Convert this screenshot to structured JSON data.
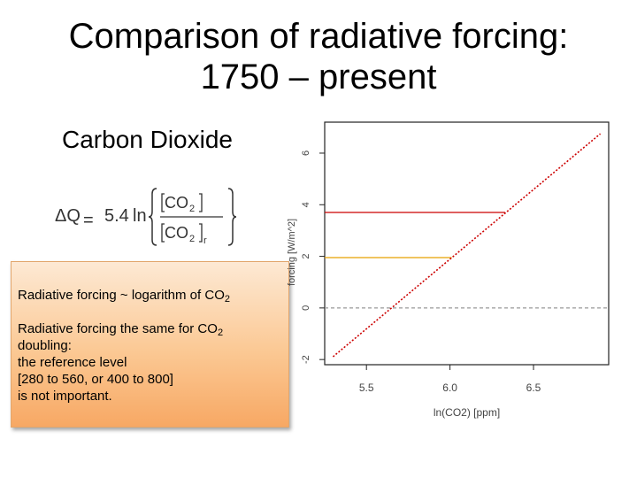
{
  "title": {
    "line1": "Comparison of radiative forcing:",
    "line2": "1750 – present"
  },
  "subtitle": "Carbon Dioxide",
  "formula": {
    "lhs": "ΔQ",
    "eq": "=",
    "coef": "5.4",
    "fn": "ln",
    "num": "CO",
    "num_sub": "2",
    "den": "CO",
    "den_sub": "2",
    "den_sub2": "r"
  },
  "callout": {
    "line1_text": "Radiative forcing ~ logarithm of CO",
    "line1_sub": "2",
    "line2_text": "Radiative forcing the same for CO",
    "line2_sub": "2",
    "line3": "doubling:",
    "line4": "the reference level",
    "line5": "[280 to 560, or 400 to 800]",
    "line6": "is not important."
  },
  "chart_data": {
    "type": "line",
    "xlabel": "ln(CO2) [ppm]",
    "ylabel": "forcing [W/m^2]",
    "xlim": [
      5.25,
      6.95
    ],
    "ylim": [
      -2.2,
      7.2
    ],
    "x_ticks": [
      "5.5",
      "6.0",
      "6.5"
    ],
    "y_ticks": [
      "-2",
      "0",
      "2",
      "4",
      "6"
    ],
    "series": [
      {
        "values": [
          [
            5.3,
            -1.89
          ],
          [
            6.9,
            6.75
          ]
        ],
        "color": "#cc0000",
        "style": "dotted"
      }
    ],
    "reference_lines": [
      {
        "y": 3.7,
        "x_end": 6.33,
        "color": "#cc0000"
      },
      {
        "y": 1.95,
        "x_end": 6.01,
        "color": "#e8a000"
      },
      {
        "y": 0,
        "color": "#999999",
        "style": "dashed"
      }
    ],
    "colors": {
      "line": "#cc0000",
      "orange": "#e8a000",
      "zero": "#999999"
    }
  }
}
